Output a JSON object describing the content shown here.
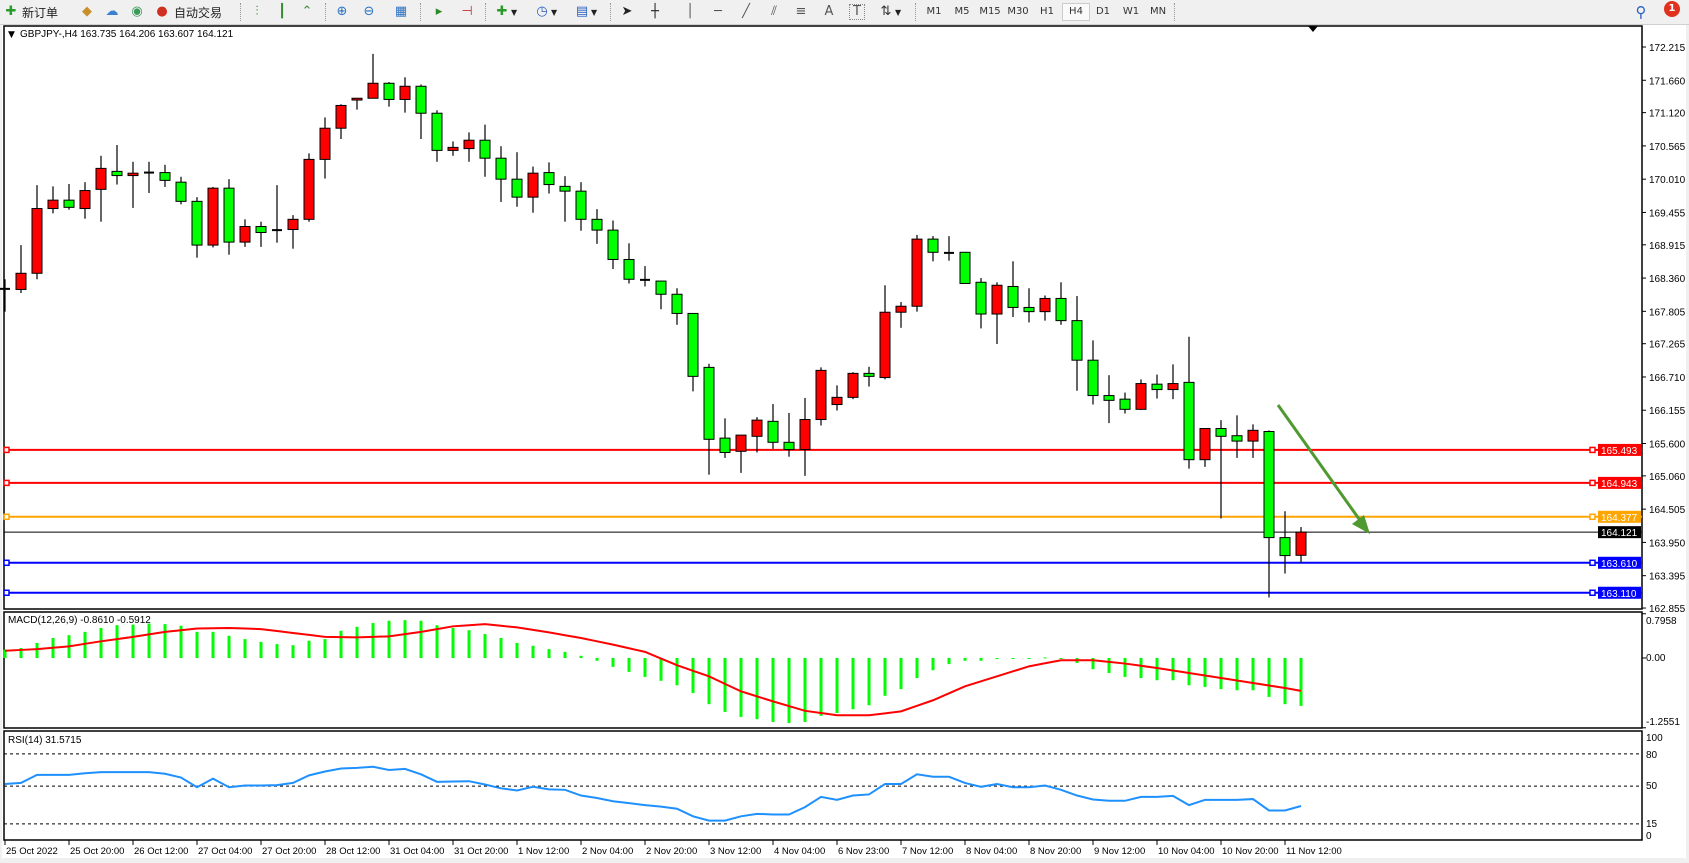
{
  "toolbar": {
    "new_order": "新订单",
    "auto_trade": "自动交易",
    "timeframes": [
      "M1",
      "M5",
      "M15",
      "M30",
      "H1",
      "H4",
      "D1",
      "W1",
      "MN"
    ],
    "active_timeframe": "H4",
    "notification_count": "1"
  },
  "chart": {
    "title": "GBPJPY-,H4  163.735 164.206 163.607 164.121",
    "up_color": "#ff0000",
    "down_color": "#00ff00",
    "price_labels": [
      "172.215",
      "171.660",
      "171.120",
      "170.565",
      "170.010",
      "169.455",
      "168.915",
      "168.360",
      "167.805",
      "167.265",
      "166.710",
      "166.155",
      "165.600",
      "165.060",
      "164.505",
      "163.950",
      "163.395",
      "162.855"
    ],
    "levels": [
      {
        "price": 165.493,
        "label": "165.493",
        "color": "#ff0000"
      },
      {
        "price": 164.943,
        "label": "164.943",
        "color": "#ff0000"
      },
      {
        "price": 164.377,
        "label": "164.377",
        "color": "#ffa500"
      },
      {
        "price": 164.121,
        "label": "164.121",
        "color": "#000000"
      },
      {
        "price": 163.61,
        "label": "163.610",
        "color": "#0000ff"
      },
      {
        "price": 163.11,
        "label": "163.110",
        "color": "#0000ff"
      }
    ],
    "arrow_color": "#4f9a30",
    "time_labels": [
      "25 Oct 2022",
      "25 Oct 20:00",
      "26 Oct 12:00",
      "27 Oct 04:00",
      "27 Oct 20:00",
      "28 Oct 12:00",
      "31 Oct 04:00",
      "31 Oct 20:00",
      "1 Nov 12:00",
      "2 Nov 04:00",
      "2 Nov 20:00",
      "3 Nov 12:00",
      "4 Nov 04:00",
      "6 Nov 23:00",
      "7 Nov 12:00",
      "8 Nov 04:00",
      "8 Nov 20:00",
      "9 Nov 12:00",
      "10 Nov 04:00",
      "10 Nov 20:00",
      "11 Nov 12:00"
    ],
    "candles_ohlc": [
      [
        168.18,
        168.34,
        167.8,
        168.18
      ],
      [
        168.17,
        168.91,
        168.11,
        168.44
      ],
      [
        168.44,
        169.91,
        168.34,
        169.52
      ],
      [
        169.52,
        169.89,
        169.44,
        169.66
      ],
      [
        169.66,
        169.93,
        169.5,
        169.54
      ],
      [
        169.52,
        169.96,
        169.35,
        169.82
      ],
      [
        169.84,
        170.4,
        169.3,
        170.19
      ],
      [
        170.14,
        170.58,
        169.92,
        170.07
      ],
      [
        170.07,
        170.3,
        169.53,
        170.11
      ],
      [
        170.12,
        170.3,
        169.78,
        170.12
      ],
      [
        170.12,
        170.25,
        169.88,
        169.99
      ],
      [
        169.96,
        170.05,
        169.59,
        169.64
      ],
      [
        169.64,
        169.71,
        168.7,
        168.91
      ],
      [
        168.91,
        169.88,
        168.87,
        169.86
      ],
      [
        169.86,
        170.01,
        168.75,
        168.96
      ],
      [
        168.96,
        169.34,
        168.88,
        169.22
      ],
      [
        169.22,
        169.3,
        168.88,
        169.12
      ],
      [
        169.16,
        169.91,
        168.95,
        169.16
      ],
      [
        169.17,
        169.41,
        168.85,
        169.34
      ],
      [
        169.34,
        170.44,
        169.3,
        170.34
      ],
      [
        170.34,
        171.04,
        170.02,
        170.86
      ],
      [
        170.86,
        171.26,
        170.68,
        171.24
      ],
      [
        171.33,
        171.36,
        171.17,
        171.36
      ],
      [
        171.36,
        172.1,
        171.36,
        171.61
      ],
      [
        171.61,
        171.63,
        171.22,
        171.34
      ],
      [
        171.34,
        171.71,
        171.12,
        171.56
      ],
      [
        171.56,
        171.59,
        170.68,
        171.11
      ],
      [
        171.11,
        171.16,
        170.3,
        170.49
      ],
      [
        170.49,
        170.64,
        170.4,
        170.54
      ],
      [
        170.52,
        170.79,
        170.3,
        170.66
      ],
      [
        170.66,
        170.92,
        170.05,
        170.36
      ],
      [
        170.36,
        170.56,
        169.63,
        170.01
      ],
      [
        170.01,
        170.46,
        169.55,
        169.71
      ],
      [
        169.71,
        170.22,
        169.45,
        170.11
      ],
      [
        170.12,
        170.29,
        169.77,
        169.92
      ],
      [
        169.89,
        170.06,
        169.3,
        169.81
      ],
      [
        169.81,
        169.96,
        169.15,
        169.34
      ],
      [
        169.34,
        169.51,
        168.93,
        169.16
      ],
      [
        169.16,
        169.32,
        168.51,
        168.67
      ],
      [
        168.67,
        168.94,
        168.27,
        168.34
      ],
      [
        168.33,
        168.56,
        168.22,
        168.33
      ],
      [
        168.31,
        168.31,
        167.84,
        168.09
      ],
      [
        168.09,
        168.19,
        167.58,
        167.77
      ],
      [
        167.77,
        167.77,
        166.47,
        166.72
      ],
      [
        166.87,
        166.93,
        165.08,
        165.67
      ],
      [
        165.69,
        166.02,
        165.36,
        165.45
      ],
      [
        165.47,
        165.74,
        165.11,
        165.74
      ],
      [
        165.72,
        166.04,
        165.45,
        165.99
      ],
      [
        165.97,
        166.26,
        165.51,
        165.62
      ],
      [
        165.62,
        166.11,
        165.38,
        165.5
      ],
      [
        165.5,
        166.36,
        165.06,
        166.0
      ],
      [
        166.0,
        166.87,
        165.9,
        166.82
      ],
      [
        166.25,
        166.57,
        166.15,
        166.37
      ],
      [
        166.37,
        166.79,
        166.34,
        166.77
      ],
      [
        166.77,
        166.88,
        166.55,
        166.72
      ],
      [
        166.7,
        168.24,
        166.67,
        167.79
      ],
      [
        167.79,
        167.96,
        167.53,
        167.89
      ],
      [
        167.89,
        169.08,
        167.8,
        169.01
      ],
      [
        169.01,
        169.06,
        168.64,
        168.79
      ],
      [
        168.78,
        169.06,
        168.65,
        168.78
      ],
      [
        168.79,
        168.79,
        168.27,
        168.27
      ],
      [
        168.29,
        168.36,
        167.52,
        167.76
      ],
      [
        167.76,
        168.29,
        167.26,
        168.24
      ],
      [
        168.22,
        168.64,
        167.71,
        167.87
      ],
      [
        167.87,
        168.19,
        167.62,
        167.8
      ],
      [
        167.8,
        168.07,
        167.65,
        168.02
      ],
      [
        168.02,
        168.29,
        167.58,
        167.65
      ],
      [
        167.65,
        168.06,
        166.48,
        166.99
      ],
      [
        166.99,
        167.32,
        166.25,
        166.4
      ],
      [
        166.4,
        166.74,
        165.94,
        166.32
      ],
      [
        166.34,
        166.45,
        166.1,
        166.17
      ],
      [
        166.17,
        166.67,
        166.16,
        166.6
      ],
      [
        166.59,
        166.75,
        166.35,
        166.5
      ],
      [
        166.5,
        166.92,
        166.34,
        166.6
      ],
      [
        166.62,
        167.38,
        165.18,
        165.33
      ],
      [
        165.33,
        165.85,
        165.21,
        165.85
      ],
      [
        165.85,
        165.99,
        164.35,
        165.72
      ],
      [
        165.73,
        166.07,
        165.36,
        165.64
      ],
      [
        165.64,
        165.92,
        165.36,
        165.82
      ],
      [
        165.8,
        165.82,
        163.03,
        164.03
      ],
      [
        164.03,
        164.47,
        163.43,
        163.73
      ],
      [
        163.735,
        164.206,
        163.607,
        164.121
      ]
    ]
  },
  "macd": {
    "label": "MACD(12,26,9) -0.8610 -0.5912",
    "scale_labels": [
      "0.7958",
      "0.00",
      "-1.2551"
    ],
    "hist_color": "#00ff00",
    "signal_color": "#ff0000",
    "histogram": [
      0.15,
      0.18,
      0.27,
      0.36,
      0.41,
      0.47,
      0.54,
      0.59,
      0.6,
      0.62,
      0.61,
      0.58,
      0.47,
      0.47,
      0.4,
      0.34,
      0.29,
      0.25,
      0.23,
      0.31,
      0.34,
      0.49,
      0.56,
      0.63,
      0.67,
      0.68,
      0.67,
      0.59,
      0.54,
      0.5,
      0.43,
      0.36,
      0.27,
      0.22,
      0.16,
      0.11,
      0.04,
      -0.05,
      -0.16,
      -0.25,
      -0.34,
      -0.41,
      -0.49,
      -0.63,
      -0.83,
      -0.97,
      -1.06,
      -1.1,
      -1.15,
      -1.17,
      -1.15,
      -1.04,
      -0.99,
      -0.92,
      -0.85,
      -0.68,
      -0.56,
      -0.36,
      -0.22,
      -0.11,
      -0.05,
      -0.05,
      -0.02,
      -0.01,
      -0.01,
      0.01,
      0.0,
      -0.09,
      -0.2,
      -0.27,
      -0.34,
      -0.36,
      -0.4,
      -0.4,
      -0.49,
      -0.52,
      -0.56,
      -0.58,
      -0.58,
      -0.7,
      -0.83,
      -0.861
    ],
    "signal": [
      0.13,
      0.145,
      0.16,
      0.185,
      0.21,
      0.255,
      0.3,
      0.34,
      0.38,
      0.425,
      0.47,
      0.5,
      0.53,
      0.535,
      0.54,
      0.53,
      0.52,
      0.485,
      0.45,
      0.415,
      0.38,
      0.375,
      0.37,
      0.38,
      0.39,
      0.43,
      0.47,
      0.52,
      0.57,
      0.59,
      0.61,
      0.58,
      0.55,
      0.505,
      0.46,
      0.41,
      0.36,
      0.3,
      0.24,
      0.175,
      0.11,
      -0.01,
      -0.13,
      -0.23,
      -0.33,
      -0.465,
      -0.6,
      -0.69,
      -0.78,
      -0.865,
      -0.95,
      -0.99,
      -1.03,
      -1.03,
      -1.03,
      -0.995,
      -0.96,
      -0.86,
      -0.76,
      -0.635,
      -0.51,
      -0.42,
      -0.33,
      -0.24,
      -0.15,
      -0.095,
      -0.04,
      -0.04,
      -0.04,
      -0.07,
      -0.1,
      -0.14,
      -0.18,
      -0.225,
      -0.27,
      -0.315,
      -0.36,
      -0.405,
      -0.45,
      -0.495,
      -0.54,
      -0.5912
    ]
  },
  "rsi": {
    "label": "RSI(14) 31.5715",
    "scale_labels": [
      "100",
      "80",
      "50",
      "15",
      "0"
    ],
    "line_color": "#1e90ff",
    "values": [
      52,
      53,
      60.5,
      60.5,
      60.5,
      62,
      63,
      63,
      63,
      63,
      61.5,
      58,
      49,
      57,
      49,
      50.6,
      50.6,
      51,
      53,
      60,
      63.6,
      66.4,
      67,
      68,
      65,
      66,
      61,
      54,
      54.3,
      54.6,
      51.5,
      48,
      46,
      49.4,
      47,
      46.6,
      41.3,
      39,
      36,
      34.2,
      32.4,
      31,
      29,
      22,
      18,
      18,
      22,
      24.3,
      23.7,
      23.7,
      30.5,
      40,
      37.3,
      41.3,
      42.3,
      52,
      52,
      61,
      58.7,
      58.7,
      53,
      49.4,
      52,
      49,
      49,
      50.6,
      46.6,
      41.3,
      37.6,
      36.4,
      36.4,
      40,
      40,
      41,
      32.4,
      37.3,
      37.3,
      37.3,
      38,
      27.4,
      27.4,
      31.5715
    ]
  }
}
